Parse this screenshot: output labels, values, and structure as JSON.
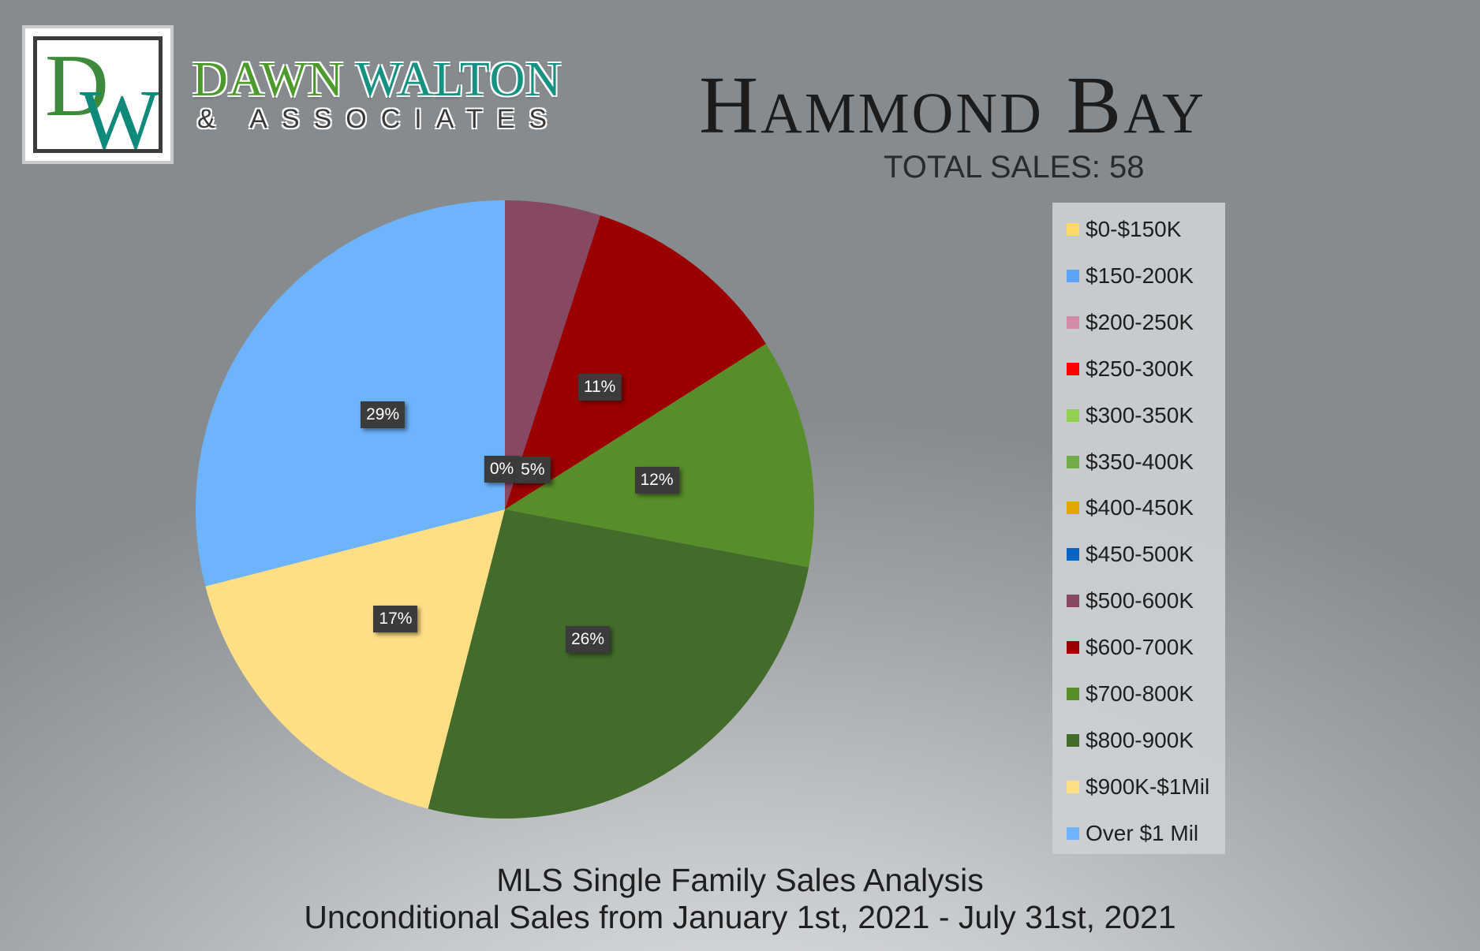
{
  "brand": {
    "logo_letter_1": "D",
    "logo_letter_2": "W",
    "name_part_1": "DAWN",
    "name_part_2": "WALTON",
    "subline": "& ASSOCIATES"
  },
  "chart_data": {
    "type": "pie",
    "title": "Hammond Bay",
    "summary_line": "TOTAL SALES: 58",
    "subtitle_line_1": "MLS Single Family Sales Analysis",
    "subtitle_line_2": "Unconditional Sales from January 1st, 2021 - July 31st, 2021",
    "legend_position": "right",
    "slices": [
      {
        "label": "$0-$150K",
        "value": 0,
        "color": "#ffd966"
      },
      {
        "label": "$150-200K",
        "value": 0,
        "color": "#5ba3f5"
      },
      {
        "label": "$200-250K",
        "value": 0,
        "color": "#d48ca6"
      },
      {
        "label": "$250-300K",
        "value": 0,
        "color": "#ff0000"
      },
      {
        "label": "$300-350K",
        "value": 0,
        "color": "#92d050"
      },
      {
        "label": "$350-400K",
        "value": 0,
        "color": "#70ad47"
      },
      {
        "label": "$400-450K",
        "value": 0,
        "color": "#e0a800"
      },
      {
        "label": "$450-500K",
        "value": 0,
        "color": "#0563c1"
      },
      {
        "label": "$500-600K",
        "value": 5,
        "color": "#874864",
        "data_label": "5%"
      },
      {
        "label": "$600-700K",
        "value": 11,
        "color": "#9b0000",
        "data_label": "11%"
      },
      {
        "label": "$700-800K",
        "value": 12,
        "color": "#588e29",
        "data_label": "12%"
      },
      {
        "label": "$800-900K",
        "value": 26,
        "color": "#436b2a",
        "data_label": "26%"
      },
      {
        "label": "$900K-$1Mil",
        "value": 17,
        "color": "#ffdf86",
        "data_label": "17%"
      },
      {
        "label": "Over $1 Mil",
        "value": 29,
        "color": "#6db4fc",
        "data_label": "29%"
      }
    ],
    "extra_data_label": "0%"
  }
}
